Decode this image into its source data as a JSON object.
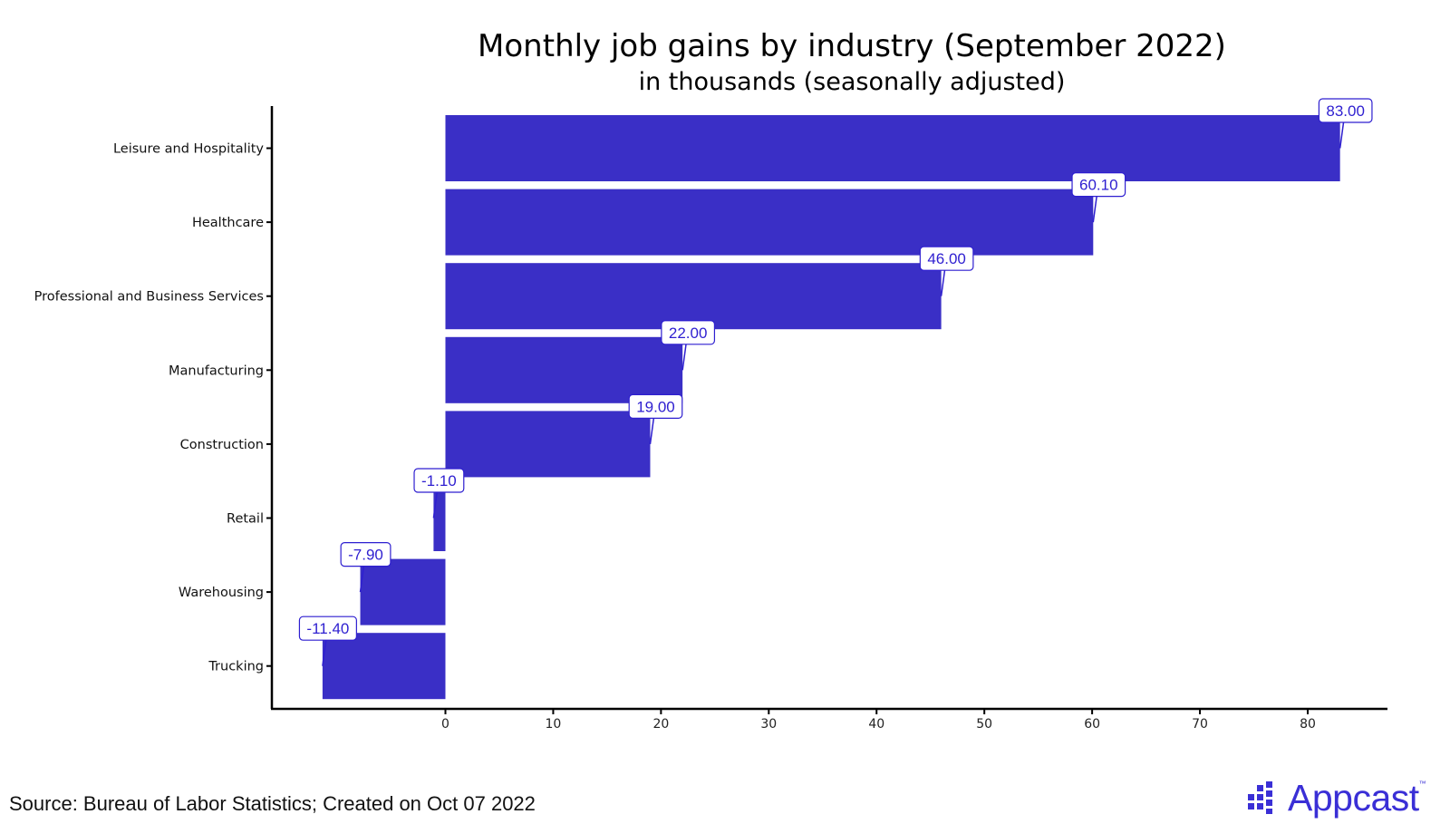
{
  "chart_data": {
    "type": "bar",
    "orientation": "horizontal",
    "title": "Monthly job gains by industry (September 2022)",
    "subtitle": "in thousands (seasonally adjusted)",
    "xlabel": "",
    "ylabel": "",
    "categories": [
      "Leisure and Hospitality",
      "Healthcare",
      "Professional and Business Services",
      "Manufacturing",
      "Construction",
      "Retail",
      "Warehousing",
      "Trucking"
    ],
    "values": [
      83.0,
      60.1,
      46.0,
      22.0,
      19.0,
      -1.1,
      -7.9,
      -11.4
    ],
    "data_labels": [
      "83.00",
      "60.10",
      "46.00",
      "22.00",
      "19.00",
      "-1.10",
      "-7.90",
      "-11.40"
    ],
    "x_ticks": [
      0,
      10,
      20,
      30,
      40,
      50,
      60,
      70,
      80
    ],
    "xlim": [
      -16.1,
      87.4
    ],
    "bar_color": "#3a2fc6",
    "label_color": "#2e1fd0",
    "grid": false,
    "legend": "none"
  },
  "footer": {
    "source": "Source: Bureau of Labor Statistics; Created on Oct 07 2022"
  },
  "logo": {
    "text": "Appcast",
    "tm": "™",
    "color": "#3a2fd6"
  }
}
